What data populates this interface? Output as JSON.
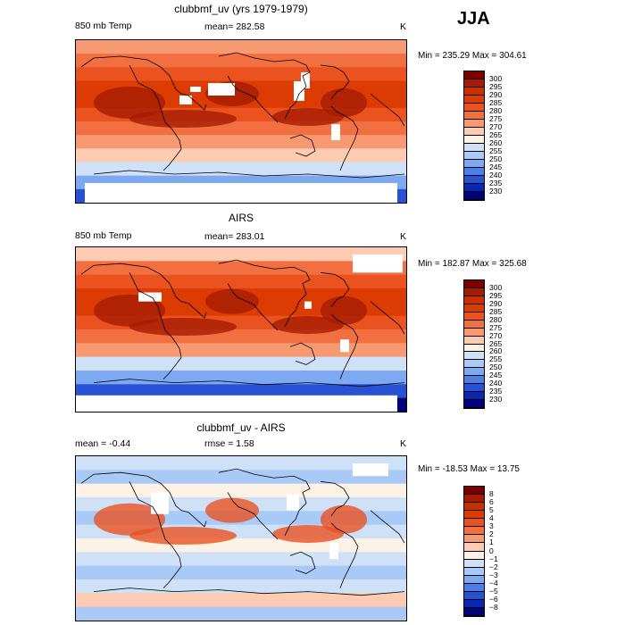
{
  "season": "JJA",
  "panels": [
    {
      "title": "clubbmf_uv (yrs 1979-1979)",
      "left": "850 mb Temp",
      "center": "mean= 282.58",
      "units": "K",
      "minmax": "Min = 235.29 Max = 304.61",
      "colorbar": {
        "labels": [
          "300",
          "295",
          "290",
          "285",
          "280",
          "275",
          "270",
          "265",
          "260",
          "255",
          "250",
          "245",
          "240",
          "235",
          "230"
        ],
        "colors": [
          "#7a0000",
          "#a51b03",
          "#c93000",
          "#dc3c04",
          "#ea5320",
          "#f26f41",
          "#f79a72",
          "#fccbb2",
          "#fbf1e5",
          "#cfe1f7",
          "#a9c9f7",
          "#7ca9f2",
          "#4d7fe8",
          "#2852d6",
          "#0a27b3",
          "#00047c"
        ]
      },
      "map": {
        "bands": [
          "#f79a72",
          "#f26f41",
          "#ea5320",
          "#dc3c04",
          "#dc3c04",
          "#ea5320",
          "#f26f41",
          "#f79a72",
          "#fccbb2",
          "#cfe1f7",
          "#7ca9f2",
          "#2852d6"
        ],
        "hot": "#a51b03",
        "blank": "#ffffff"
      }
    },
    {
      "title": "AIRS",
      "left": "850 mb Temp",
      "center": "mean= 283.01",
      "units": "K",
      "minmax": "Min = 182.87 Max = 325.68",
      "colorbar": {
        "labels": [
          "300",
          "295",
          "290",
          "285",
          "280",
          "275",
          "270",
          "265",
          "260",
          "255",
          "250",
          "245",
          "240",
          "235",
          "230"
        ],
        "colors": [
          "#7a0000",
          "#a51b03",
          "#c93000",
          "#dc3c04",
          "#ea5320",
          "#f26f41",
          "#f79a72",
          "#fccbb2",
          "#fbf1e5",
          "#cfe1f7",
          "#a9c9f7",
          "#7ca9f2",
          "#4d7fe8",
          "#2852d6",
          "#0a27b3",
          "#00047c"
        ]
      },
      "map": {
        "bands": [
          "#fccbb2",
          "#f26f41",
          "#ea5320",
          "#dc3c04",
          "#dc3c04",
          "#ea5320",
          "#f26f41",
          "#f79a72",
          "#cfe1f7",
          "#7ca9f2",
          "#2852d6",
          "#00047c"
        ],
        "hot": "#a51b03",
        "blank": "#ffffff"
      }
    },
    {
      "title": "clubbmf_uv - AIRS",
      "left": "mean =  -0.44",
      "center": "rmse =   1.58",
      "units": "K",
      "minmax": "Min = -18.53 Max =  13.75",
      "colorbar": {
        "labels": [
          "8",
          "6",
          "5",
          "4",
          "3",
          "2",
          "1",
          "0",
          "−1",
          "−2",
          "−3",
          "−4",
          "−5",
          "−6",
          "−8"
        ],
        "colors": [
          "#7a0000",
          "#a51b03",
          "#c93000",
          "#dc3c04",
          "#ea5320",
          "#f26f41",
          "#f79a72",
          "#fccbb2",
          "#fbf1e5",
          "#cfe1f7",
          "#a9c9f7",
          "#7ca9f2",
          "#4d7fe8",
          "#2852d6",
          "#0a27b3",
          "#00047c"
        ]
      },
      "map": {
        "bands": [
          "#cfe1f7",
          "#a9c9f7",
          "#fbf1e5",
          "#cfe1f7",
          "#a9c9f7",
          "#cfe1f7",
          "#fbf1e5",
          "#cfe1f7",
          "#a9c9f7",
          "#cfe1f7",
          "#fccbb2",
          "#a9c9f7"
        ],
        "hot": "#ea5320",
        "blank": "#ffffff"
      }
    }
  ]
}
